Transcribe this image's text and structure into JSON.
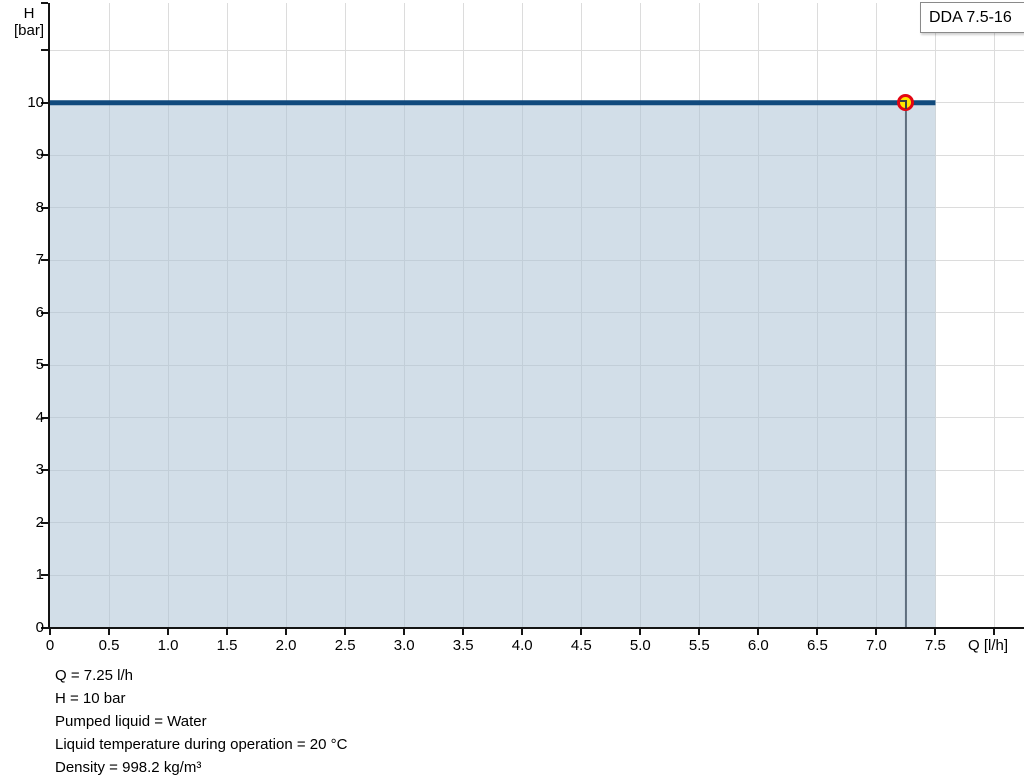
{
  "header": {
    "series_label": "DDA 7.5-16"
  },
  "axes": {
    "y_title_line1": "H",
    "y_title_line2": "[bar]",
    "x_title": "Q [l/h]"
  },
  "chart_data": {
    "type": "area",
    "title": "",
    "xlabel": "Q [l/h]",
    "ylabel": "H [bar]",
    "xlim": [
      0,
      8.25
    ],
    "ylim": [
      0,
      11.9
    ],
    "grid": true,
    "xticks": [
      {
        "v": 0,
        "label": "0"
      },
      {
        "v": 0.5,
        "label": "0.5"
      },
      {
        "v": 1,
        "label": "1.0"
      },
      {
        "v": 1.5,
        "label": "1.5"
      },
      {
        "v": 2,
        "label": "2.0"
      },
      {
        "v": 2.5,
        "label": "2.5"
      },
      {
        "v": 3,
        "label": "3.0"
      },
      {
        "v": 3.5,
        "label": "3.5"
      },
      {
        "v": 4,
        "label": "4.0"
      },
      {
        "v": 4.5,
        "label": "4.5"
      },
      {
        "v": 5,
        "label": "5.0"
      },
      {
        "v": 5.5,
        "label": "5.5"
      },
      {
        "v": 6,
        "label": "6.0"
      },
      {
        "v": 6.5,
        "label": "6.5"
      },
      {
        "v": 7,
        "label": "7.0"
      },
      {
        "v": 7.5,
        "label": "7.5"
      },
      {
        "v": 8,
        "label": ""
      }
    ],
    "yticks": [
      {
        "v": 0,
        "label": "0"
      },
      {
        "v": 1,
        "label": "1"
      },
      {
        "v": 2,
        "label": "2"
      },
      {
        "v": 3,
        "label": "3"
      },
      {
        "v": 4,
        "label": "4"
      },
      {
        "v": 5,
        "label": "5"
      },
      {
        "v": 6,
        "label": "6"
      },
      {
        "v": 7,
        "label": "7"
      },
      {
        "v": 8,
        "label": "8"
      },
      {
        "v": 9,
        "label": "9"
      },
      {
        "v": 10,
        "label": "10"
      },
      {
        "v": 11,
        "label": ""
      }
    ],
    "series": [
      {
        "name": "DDA 7.5-16",
        "points": [
          [
            0,
            10
          ],
          [
            7.5,
            10
          ]
        ],
        "line_color": "#114a7d",
        "fill_color_rgba": "rgba(173,194,214,0.55)",
        "filled": true
      }
    ],
    "operating_point": {
      "q": 7.25,
      "h": 10,
      "marker_fill": "#ffe600",
      "marker_ring": "#e30613",
      "crosshair_color": "#5f6e7e"
    }
  },
  "footer": {
    "lines": [
      "Q = 7.25 l/h",
      "H = 10 bar",
      "Pumped liquid = Water",
      "Liquid temperature during operation = 20 °C",
      "Density = 998.2 kg/m³"
    ]
  }
}
